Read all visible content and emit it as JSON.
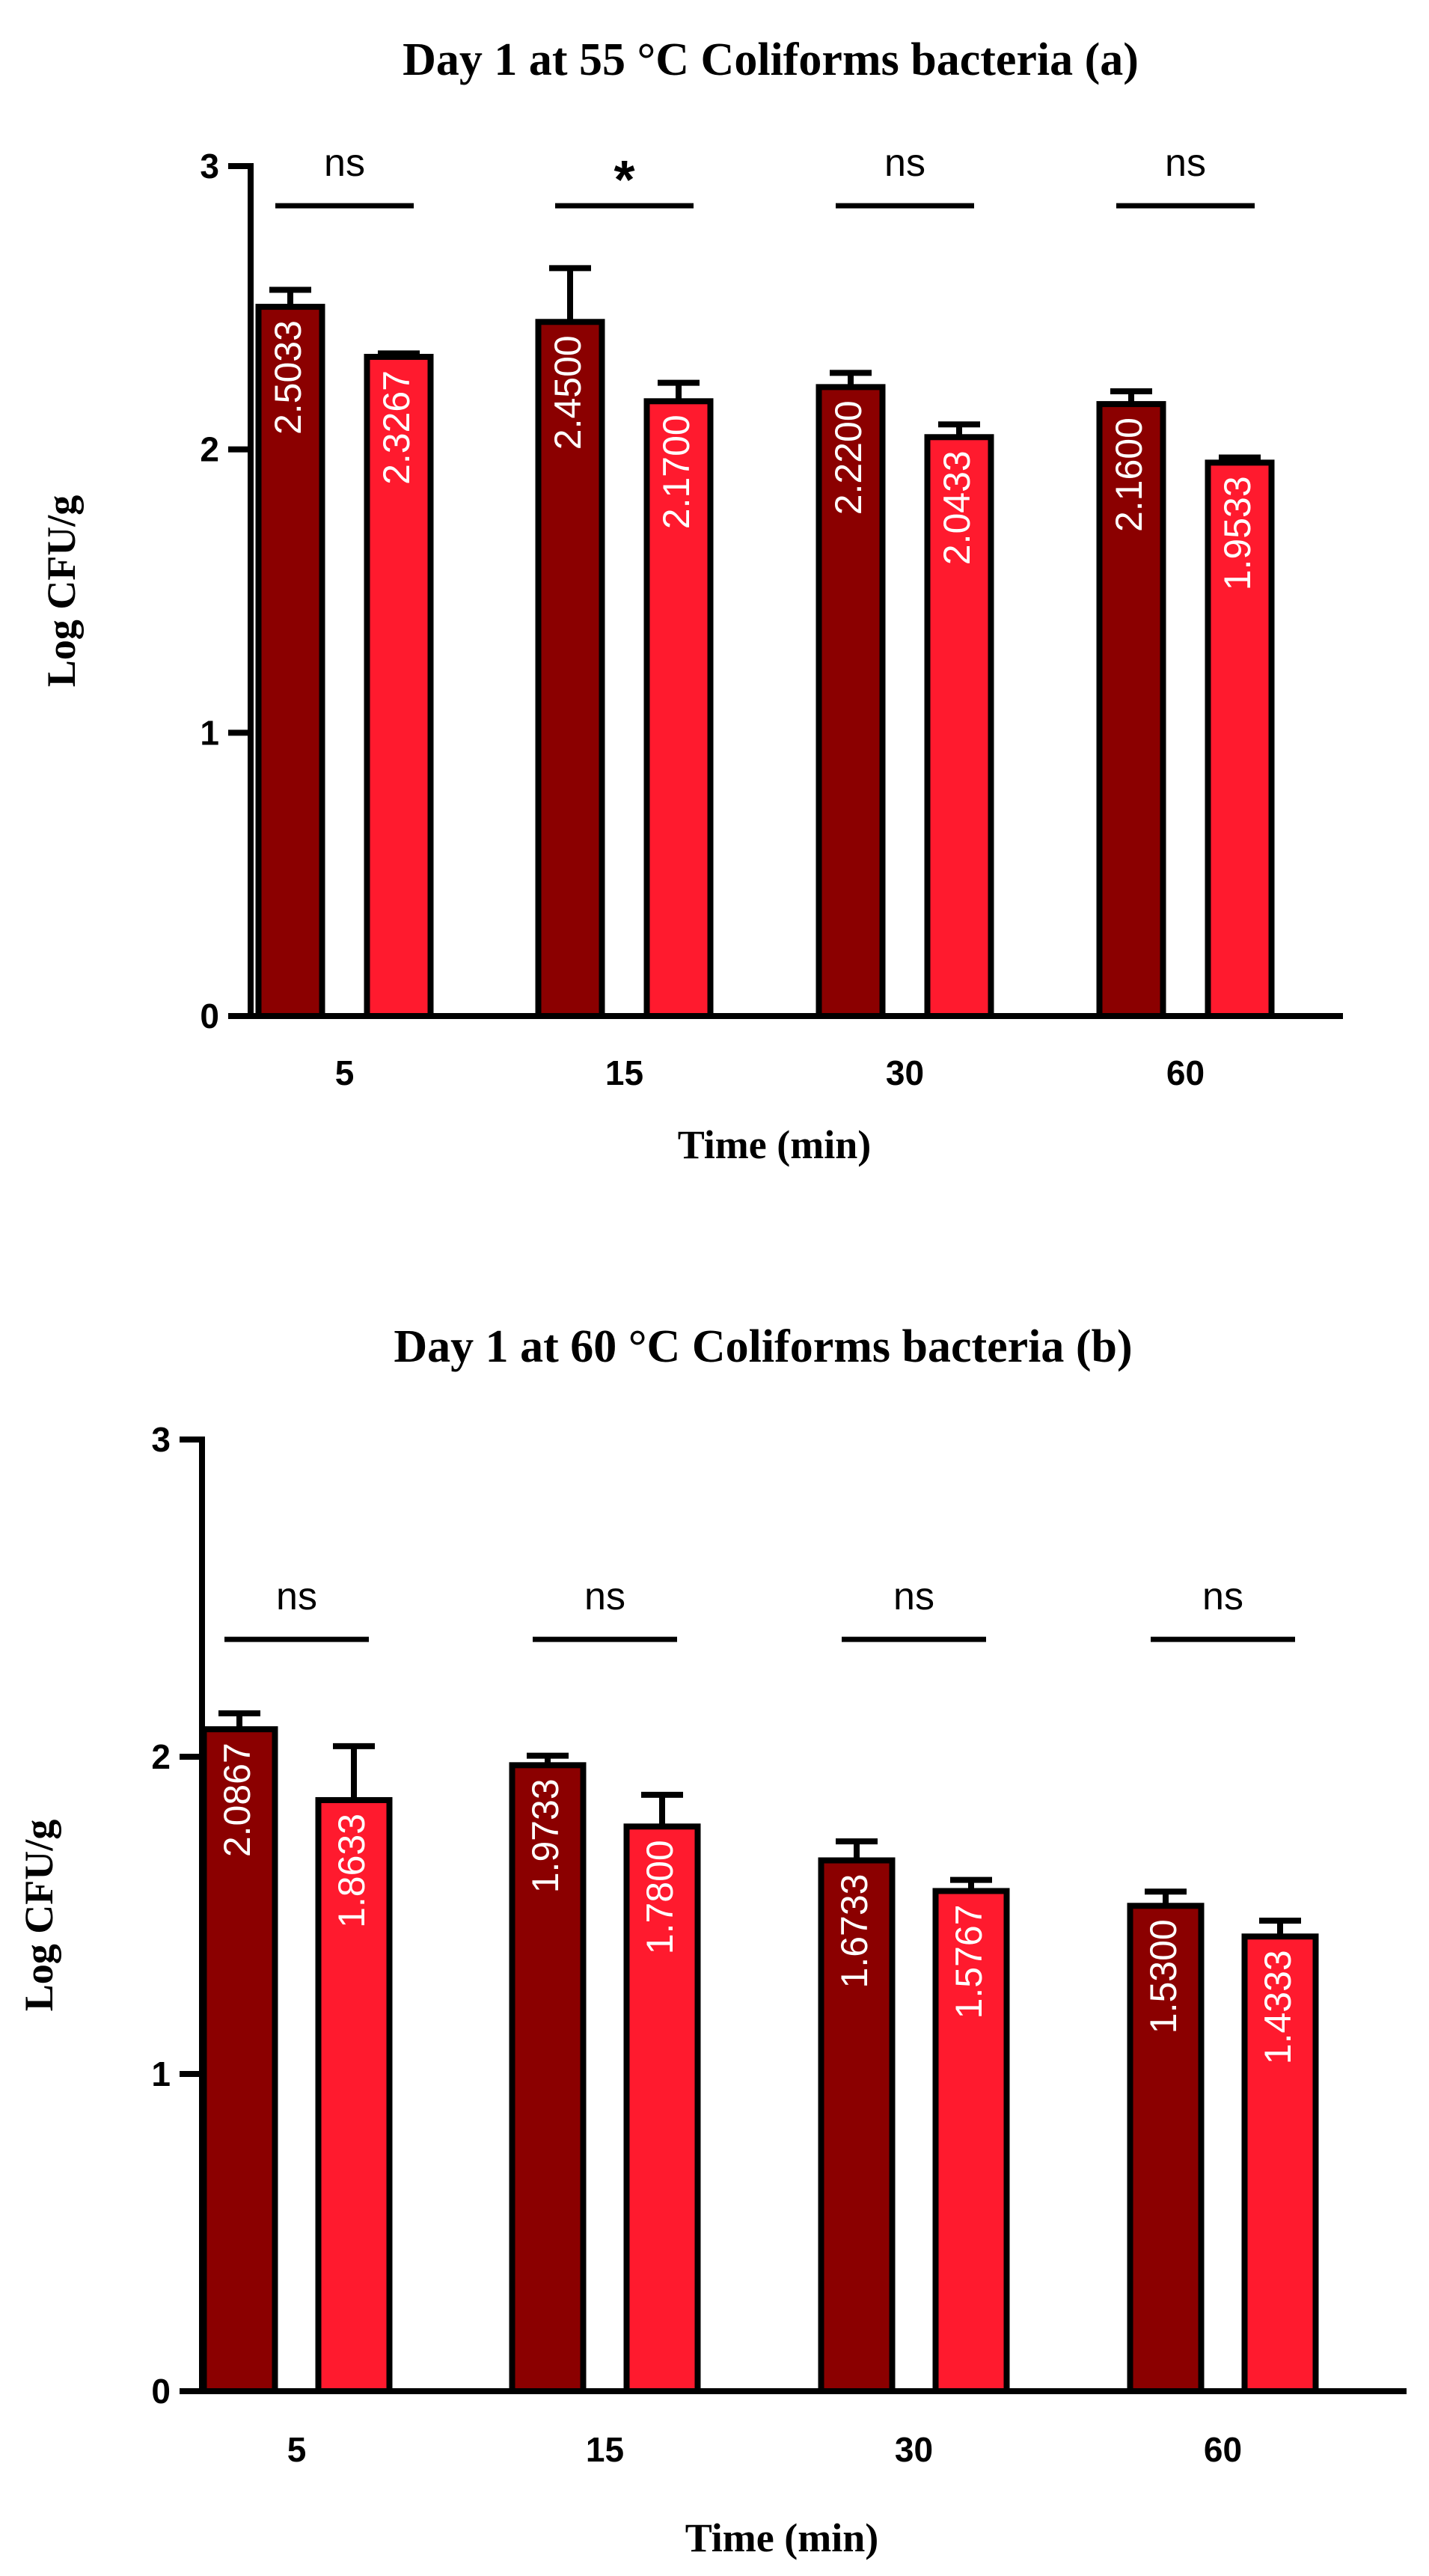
{
  "chart_data": [
    {
      "type": "bar",
      "title": "Day 1 at 55 °C Coliforms bacteria (a)",
      "xlabel": "Time (min)",
      "ylabel": "Log CFU/g",
      "ylim": [
        0,
        3
      ],
      "yticks": [
        "0",
        "1",
        "2",
        "3"
      ],
      "categories": [
        "5",
        "15",
        "30",
        "60"
      ],
      "colors": [
        "#8b0000",
        "#ff1a2e"
      ],
      "series": [
        {
          "values": [
            2.5033,
            2.45,
            2.22,
            2.16
          ],
          "errors": [
            0.06,
            0.19,
            0.05,
            0.045
          ],
          "labels": [
            "2.5033",
            "2.4500",
            "2.2200",
            "2.1600"
          ]
        },
        {
          "values": [
            2.3267,
            2.17,
            2.0433,
            1.9533
          ],
          "errors": [
            0.012,
            0.065,
            0.045,
            0.018
          ],
          "labels": [
            "2.3267",
            "2.1700",
            "2.0433",
            "1.9533"
          ]
        }
      ],
      "significance": [
        "ns",
        "*",
        "ns",
        "ns"
      ],
      "significance_y": 2.86
    },
    {
      "type": "bar",
      "title": "Day 1 at 60 °C Coliforms bacteria (b)",
      "xlabel": "Time (min)",
      "ylabel": "Log CFU/g",
      "ylim": [
        0,
        3
      ],
      "yticks": [
        "0",
        "1",
        "2",
        "3"
      ],
      "categories": [
        "5",
        "15",
        "30",
        "60"
      ],
      "colors": [
        "#8b0000",
        "#ff1a2e"
      ],
      "series": [
        {
          "values": [
            2.0867,
            1.9733,
            1.6733,
            1.53
          ],
          "errors": [
            0.05,
            0.03,
            0.06,
            0.045
          ],
          "labels": [
            "2.0867",
            "1.9733",
            "1.6733",
            "1.5300"
          ]
        },
        {
          "values": [
            1.8633,
            1.78,
            1.5767,
            1.4333
          ],
          "errors": [
            0.17,
            0.1,
            0.035,
            0.05
          ],
          "labels": [
            "1.8633",
            "1.7800",
            "1.5767",
            "1.4333"
          ]
        }
      ],
      "significance": [
        "ns",
        "ns",
        "ns",
        "ns"
      ],
      "significance_y": 2.37
    }
  ]
}
